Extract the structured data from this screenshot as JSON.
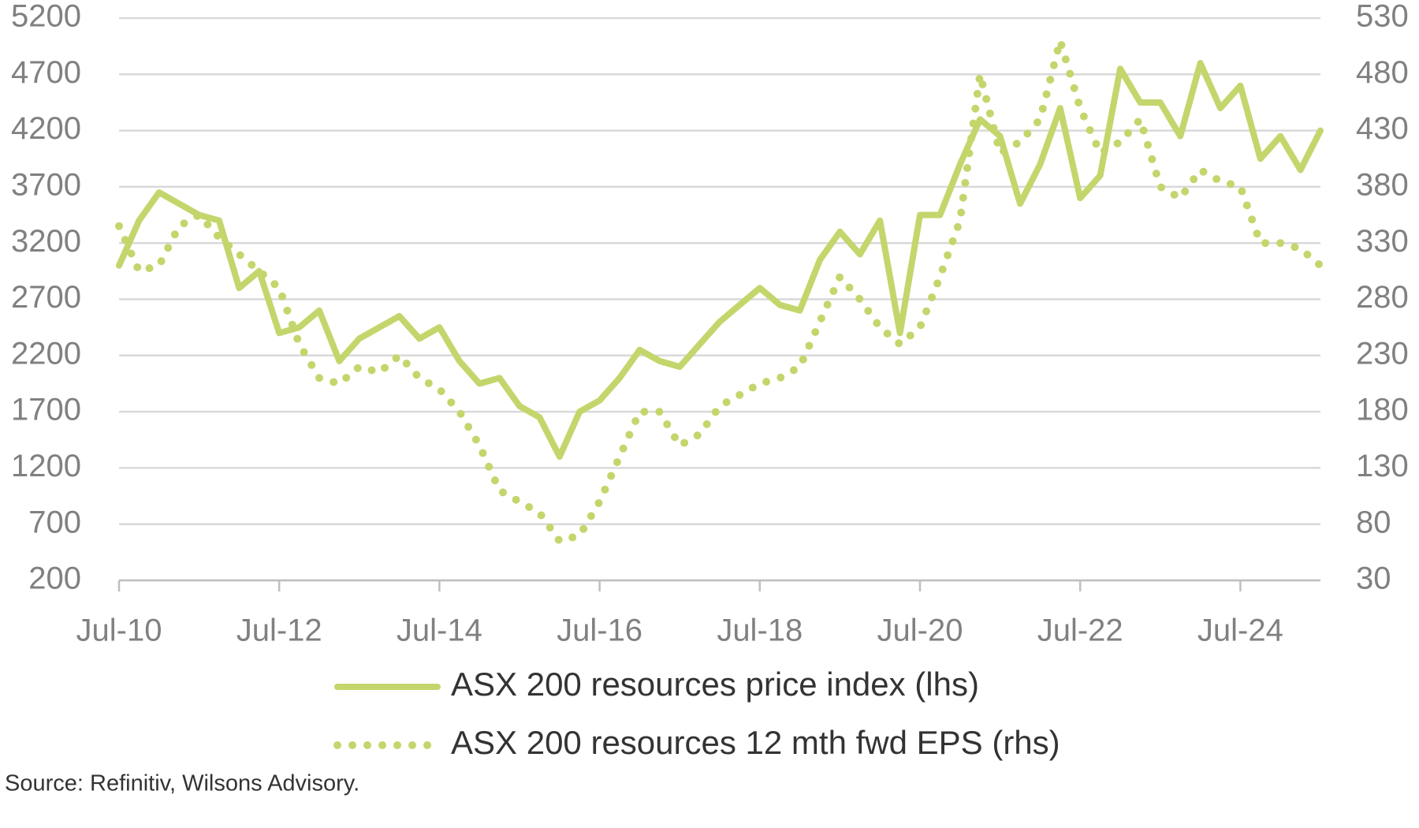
{
  "chart_data": {
    "type": "line",
    "categories": [
      "Jul-10",
      null,
      null,
      null,
      null,
      null,
      null,
      null,
      "Jul-12",
      null,
      null,
      null,
      null,
      null,
      null,
      null,
      "Jul-14",
      null,
      null,
      null,
      null,
      null,
      null,
      null,
      "Jul-16",
      null,
      null,
      null,
      null,
      null,
      null,
      null,
      "Jul-18",
      null,
      null,
      null,
      null,
      null,
      null,
      null,
      "Jul-20",
      null,
      null,
      null,
      null,
      null,
      null,
      null,
      "Jul-22",
      null,
      null,
      null,
      null,
      null,
      null,
      null,
      "Jul-24",
      null,
      null,
      null,
      null
    ],
    "series": [
      {
        "name": "ASX 200 resources price index (lhs)",
        "color": "#c3d66c",
        "style": "solid",
        "values": [
          3000,
          3400,
          3650,
          3550,
          3450,
          3400,
          2800,
          2950,
          2400,
          2450,
          2600,
          2150,
          2350,
          2450,
          2550,
          2350,
          2450,
          2150,
          1950,
          2000,
          1750,
          1650,
          1300,
          1700,
          1800,
          2000,
          2250,
          2150,
          2100,
          2300,
          2500,
          2650,
          2800,
          2650,
          2600,
          3050,
          3300,
          3100,
          3400,
          2400,
          3450,
          3450,
          3900,
          4300,
          4150,
          3550,
          3900,
          4400,
          3600,
          3800,
          4750,
          4450,
          4450,
          4150,
          4800,
          4400,
          4600,
          3950,
          4150,
          3850,
          4200
        ]
      },
      {
        "name": "ASX 200 resources 12 mth fwd EPS (rhs)",
        "color": "#c3d66c",
        "style": "dotted",
        "axis": "y2",
        "values": [
          345,
          305,
          310,
          345,
          355,
          335,
          320,
          305,
          290,
          240,
          210,
          205,
          220,
          215,
          230,
          210,
          200,
          180,
          150,
          110,
          100,
          90,
          65,
          70,
          100,
          140,
          180,
          180,
          150,
          160,
          185,
          195,
          205,
          210,
          220,
          260,
          300,
          280,
          255,
          240,
          255,
          300,
          350,
          480,
          410,
          420,
          440,
          510,
          450,
          410,
          420,
          440,
          380,
          370,
          395,
          385,
          380,
          330,
          330,
          325,
          310
        ]
      }
    ],
    "ylim": [
      200,
      5200
    ],
    "yticks": [
      200,
      700,
      1200,
      1700,
      2200,
      2700,
      3200,
      3700,
      4200,
      4700,
      5200
    ],
    "y2lim": [
      30,
      530
    ],
    "y2ticks": [
      30,
      80,
      130,
      180,
      230,
      280,
      330,
      380,
      430,
      480,
      530
    ],
    "grid": true,
    "legend": "bottom",
    "source": "Source: Refinitiv, Wilsons Advisory."
  }
}
